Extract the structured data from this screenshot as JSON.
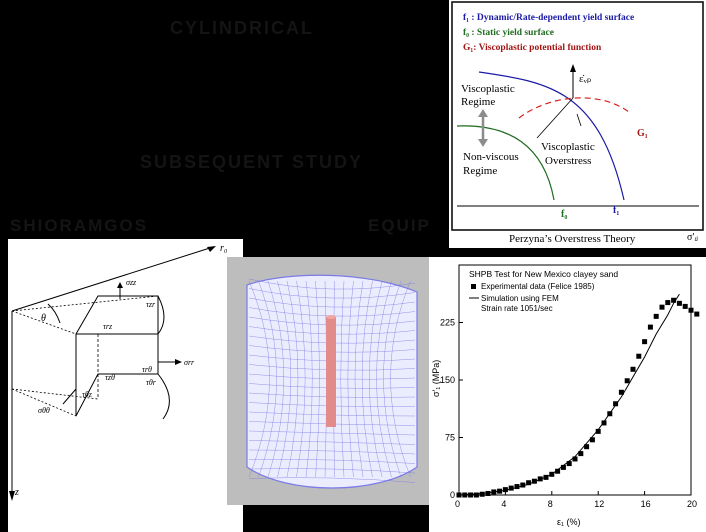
{
  "background_titles": {
    "top": "CYLINDRICAL",
    "middle": "SUBSEQUENT STUDY",
    "left": "SHIORAMGOS",
    "right": "EQUIP"
  },
  "perzyna": {
    "legend": [
      {
        "text": "f₁ : Dynamic/Rate-dependent yield surface",
        "color": "#1a1aa6"
      },
      {
        "text": "f₀ : Static yield surface",
        "color": "#1f6b1f"
      },
      {
        "text": "G₁: Viscoplastic potential function",
        "color": "#a31515"
      }
    ],
    "labels": {
      "viscoplastic_regime_1": "Viscoplastic",
      "viscoplastic_regime_2": "Regime",
      "nonviscous_1": "Non-viscous",
      "nonviscous_2": "Regime",
      "overstress_1": "Viscoplastic",
      "overstress_2": "Overstress",
      "strain_rate": "ε̇ᵥₚ",
      "g_label": "G₁",
      "f0_label": "f₀",
      "fd_label": "f₁",
      "sigma_axis": "σ′ᵢⱼ",
      "caption": "Perzyna’s Overstress Theory"
    }
  },
  "element_diagram": {
    "labels": {
      "r0": "r₀",
      "z": "z",
      "theta": "θ",
      "s_zz": "σzz",
      "t_zr": "τzr",
      "t_rz": "τrz",
      "s_rr": "σrr",
      "t_rt": "τrθ",
      "t_tr": "τθr",
      "t_zt": "τzθ",
      "t_tz": "τθz",
      "s_tt": "σθθ"
    }
  },
  "fem_panel": {
    "mesh_color": "#7b7be6",
    "rod_color": "#e38b8b"
  },
  "chart_data": {
    "type": "scatter",
    "title_lines": [
      "SHPB Test for New Mexico clayey sand"
    ],
    "legend": [
      {
        "label": "Experimental data (Felice 1985)",
        "marker": "square"
      },
      {
        "label": "Simulation using FEM",
        "marker": "line"
      },
      {
        "label": "Strain rate 1051/sec",
        "marker": "none"
      }
    ],
    "xlabel": "ε₁ (%)",
    "ylabel": "σ′₁ (MPa)",
    "xlim": [
      0,
      20
    ],
    "ylim": [
      0,
      300
    ],
    "xticks": [
      "0",
      "4",
      "8",
      "12",
      "16",
      "20"
    ],
    "yticks": [
      "0",
      "75",
      "150",
      "225"
    ],
    "series": [
      {
        "name": "Experimental data (Felice 1985)",
        "points": [
          [
            0,
            0
          ],
          [
            0.5,
            0
          ],
          [
            1,
            0
          ],
          [
            1.5,
            0
          ],
          [
            2,
            1
          ],
          [
            2.5,
            2
          ],
          [
            3,
            4
          ],
          [
            3.5,
            5
          ],
          [
            4,
            7
          ],
          [
            4.5,
            9
          ],
          [
            5,
            11
          ],
          [
            5.5,
            13
          ],
          [
            6,
            16
          ],
          [
            6.5,
            18
          ],
          [
            7,
            21
          ],
          [
            7.5,
            23
          ],
          [
            8,
            27
          ],
          [
            8.5,
            31
          ],
          [
            9,
            36
          ],
          [
            9.5,
            41
          ],
          [
            10,
            47
          ],
          [
            10.5,
            54
          ],
          [
            11,
            63
          ],
          [
            11.5,
            72
          ],
          [
            12,
            83
          ],
          [
            12.5,
            94
          ],
          [
            13,
            106
          ],
          [
            13.5,
            119
          ],
          [
            14,
            134
          ],
          [
            14.5,
            149
          ],
          [
            15,
            164
          ],
          [
            15.5,
            181
          ],
          [
            16,
            200
          ],
          [
            16.5,
            219
          ],
          [
            17,
            233
          ],
          [
            17.5,
            245
          ],
          [
            18,
            251
          ],
          [
            18.5,
            254
          ],
          [
            19,
            250
          ],
          [
            19.5,
            246
          ],
          [
            20,
            241
          ],
          [
            20.5,
            236
          ]
        ]
      },
      {
        "name": "Simulation using FEM",
        "points": [
          [
            0,
            0
          ],
          [
            2,
            2
          ],
          [
            4,
            6
          ],
          [
            6,
            14
          ],
          [
            8,
            27
          ],
          [
            10,
            50
          ],
          [
            12,
            85
          ],
          [
            14,
            128
          ],
          [
            16,
            180
          ],
          [
            17,
            210
          ],
          [
            18,
            235
          ],
          [
            18.5,
            250
          ],
          [
            19,
            262
          ]
        ]
      }
    ]
  }
}
